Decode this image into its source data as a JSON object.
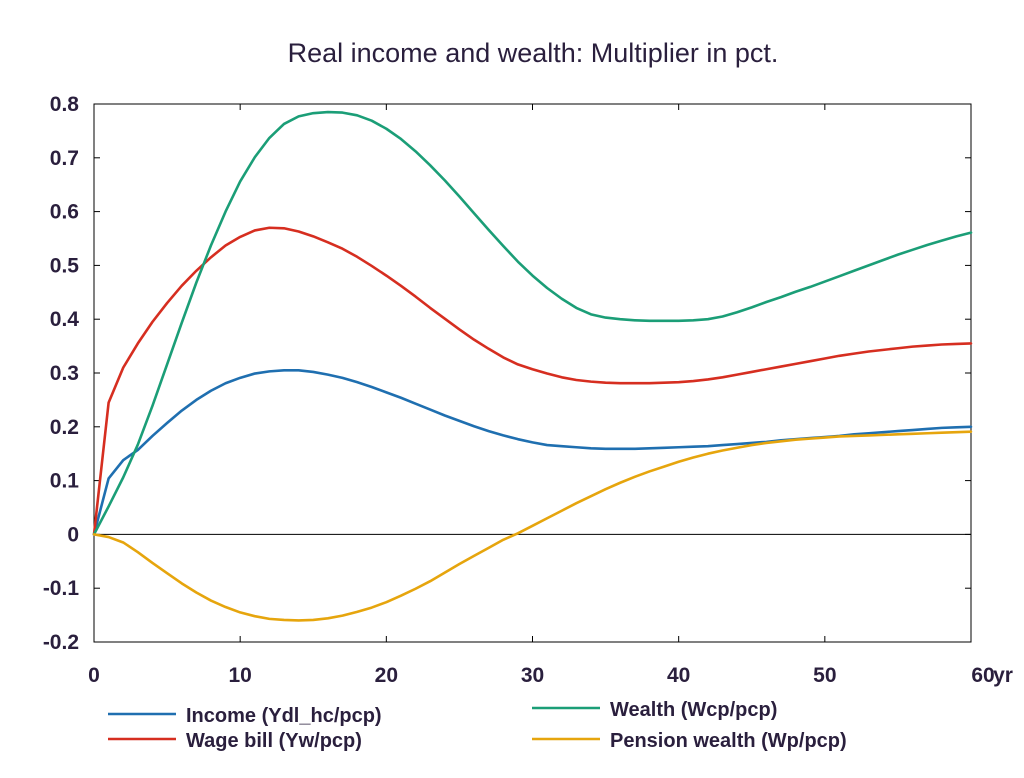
{
  "chart_data": {
    "type": "line",
    "title": "Real income and wealth: Multiplier in pct.",
    "x_unit_label": "yr",
    "xlim": [
      0,
      60
    ],
    "ylim": [
      -0.2,
      0.8
    ],
    "x_ticks": [
      0,
      10,
      20,
      30,
      40,
      50,
      60
    ],
    "x_tick_labels": [
      "0",
      "10",
      "20",
      "30",
      "40",
      "50",
      "60"
    ],
    "y_ticks": [
      -0.2,
      -0.1,
      0,
      0.1,
      0.2,
      0.3,
      0.4,
      0.5,
      0.6,
      0.7,
      0.8
    ],
    "y_tick_labels": [
      "-0.2",
      "-0.1",
      "0",
      "0.1",
      "0.2",
      "0.3",
      "0.4",
      "0.5",
      "0.6",
      "0.7",
      "0.8"
    ],
    "grid": false,
    "legend_position": "bottom",
    "x": [
      0,
      1,
      2,
      3,
      4,
      5,
      6,
      7,
      8,
      9,
      10,
      11,
      12,
      13,
      14,
      15,
      16,
      17,
      18,
      19,
      20,
      21,
      22,
      23,
      24,
      25,
      26,
      27,
      28,
      29,
      30,
      31,
      32,
      33,
      34,
      35,
      36,
      37,
      38,
      39,
      40,
      41,
      42,
      43,
      44,
      45,
      46,
      47,
      48,
      49,
      50,
      51,
      52,
      53,
      54,
      55,
      56,
      57,
      58,
      59,
      60
    ],
    "series": [
      {
        "name": "Income (Ydl_hc/pcp)",
        "color": "#1f6fb0",
        "values": [
          0,
          0.104,
          0.138,
          0.157,
          0.183,
          0.207,
          0.23,
          0.25,
          0.267,
          0.281,
          0.291,
          0.299,
          0.303,
          0.305,
          0.305,
          0.302,
          0.297,
          0.291,
          0.283,
          0.274,
          0.264,
          0.254,
          0.243,
          0.232,
          0.221,
          0.211,
          0.201,
          0.192,
          0.184,
          0.177,
          0.171,
          0.166,
          0.164,
          0.162,
          0.16,
          0.159,
          0.159,
          0.159,
          0.16,
          0.161,
          0.162,
          0.163,
          0.164,
          0.166,
          0.168,
          0.17,
          0.172,
          0.175,
          0.177,
          0.179,
          0.181,
          0.183,
          0.186,
          0.188,
          0.19,
          0.192,
          0.194,
          0.196,
          0.198,
          0.199,
          0.2
        ]
      },
      {
        "name": "Wage bill (Yw/pcp)",
        "color": "#d62e20",
        "values": [
          0,
          0.245,
          0.31,
          0.355,
          0.395,
          0.43,
          0.462,
          0.49,
          0.515,
          0.537,
          0.553,
          0.565,
          0.57,
          0.569,
          0.563,
          0.554,
          0.543,
          0.531,
          0.516,
          0.499,
          0.481,
          0.462,
          0.442,
          0.421,
          0.401,
          0.381,
          0.362,
          0.345,
          0.329,
          0.316,
          0.307,
          0.299,
          0.292,
          0.287,
          0.284,
          0.282,
          0.281,
          0.281,
          0.281,
          0.282,
          0.283,
          0.285,
          0.288,
          0.292,
          0.297,
          0.302,
          0.307,
          0.312,
          0.317,
          0.322,
          0.327,
          0.332,
          0.336,
          0.34,
          0.343,
          0.346,
          0.349,
          0.351,
          0.353,
          0.354,
          0.355
        ]
      },
      {
        "name": "Wealth (Wcp/pcp)",
        "color": "#1b9e77",
        "values": [
          0,
          0.052,
          0.106,
          0.167,
          0.239,
          0.316,
          0.393,
          0.468,
          0.537,
          0.6,
          0.656,
          0.701,
          0.737,
          0.763,
          0.777,
          0.783,
          0.785,
          0.784,
          0.779,
          0.769,
          0.754,
          0.735,
          0.712,
          0.686,
          0.658,
          0.628,
          0.597,
          0.566,
          0.536,
          0.507,
          0.481,
          0.458,
          0.438,
          0.421,
          0.409,
          0.403,
          0.4,
          0.398,
          0.397,
          0.397,
          0.397,
          0.398,
          0.4,
          0.405,
          0.413,
          0.422,
          0.432,
          0.441,
          0.451,
          0.46,
          0.47,
          0.48,
          0.49,
          0.5,
          0.51,
          0.52,
          0.529,
          0.538,
          0.546,
          0.554,
          0.561
        ]
      },
      {
        "name": "Pension wealth (Wp/pcp)",
        "color": "#e6a50d",
        "values": [
          0,
          -0.005,
          -0.015,
          -0.033,
          -0.053,
          -0.072,
          -0.091,
          -0.108,
          -0.123,
          -0.135,
          -0.145,
          -0.152,
          -0.157,
          -0.159,
          -0.16,
          -0.159,
          -0.156,
          -0.151,
          -0.144,
          -0.136,
          -0.126,
          -0.114,
          -0.101,
          -0.087,
          -0.071,
          -0.055,
          -0.04,
          -0.025,
          -0.01,
          0.002,
          0.016,
          0.03,
          0.044,
          0.058,
          0.071,
          0.084,
          0.096,
          0.107,
          0.117,
          0.126,
          0.135,
          0.143,
          0.15,
          0.156,
          0.161,
          0.166,
          0.17,
          0.173,
          0.176,
          0.178,
          0.18,
          0.182,
          0.183,
          0.184,
          0.185,
          0.186,
          0.187,
          0.188,
          0.189,
          0.19,
          0.191
        ]
      }
    ]
  }
}
